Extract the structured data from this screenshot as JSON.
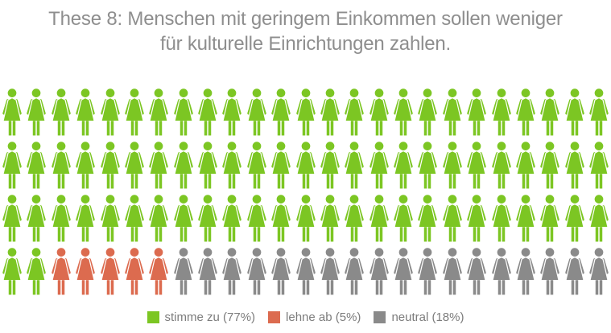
{
  "title": {
    "line1": "These 8: Menschen mit geringem Einkommen sollen weniger",
    "line2": "für kulturelle Einrichtungen zahlen.",
    "full": "These 8: Menschen mit geringem Einkommen sollen weniger für kulturelle Einrichtungen zahlen.",
    "color": "#8E8E8E"
  },
  "chart_data": {
    "type": "pictogram",
    "title": "These 8: Menschen mit geringem Einkommen sollen weniger für kulturelle Einrichtungen zahlen.",
    "icon": "woman-figure",
    "total_icons": 100,
    "rows": 4,
    "icons_per_row": 25,
    "icon_value_percent": 1,
    "fill_order": "left-to-right, top-to-bottom",
    "legend_position": "bottom-center",
    "series": [
      {
        "name": "stimme zu",
        "value_percent": 77,
        "icon_count": 77,
        "color": "#7CC623",
        "legend_label": "stimme zu (77%)"
      },
      {
        "name": "lehne ab",
        "value_percent": 5,
        "icon_count": 5,
        "color": "#DC6B4F",
        "legend_label": "lehne ab (5%)"
      },
      {
        "name": "neutral",
        "value_percent": 18,
        "icon_count": 18,
        "color": "#8A8A8A",
        "legend_label": "neutral (18%)"
      }
    ]
  },
  "legend": {
    "text_color": "#7C7C7C"
  }
}
